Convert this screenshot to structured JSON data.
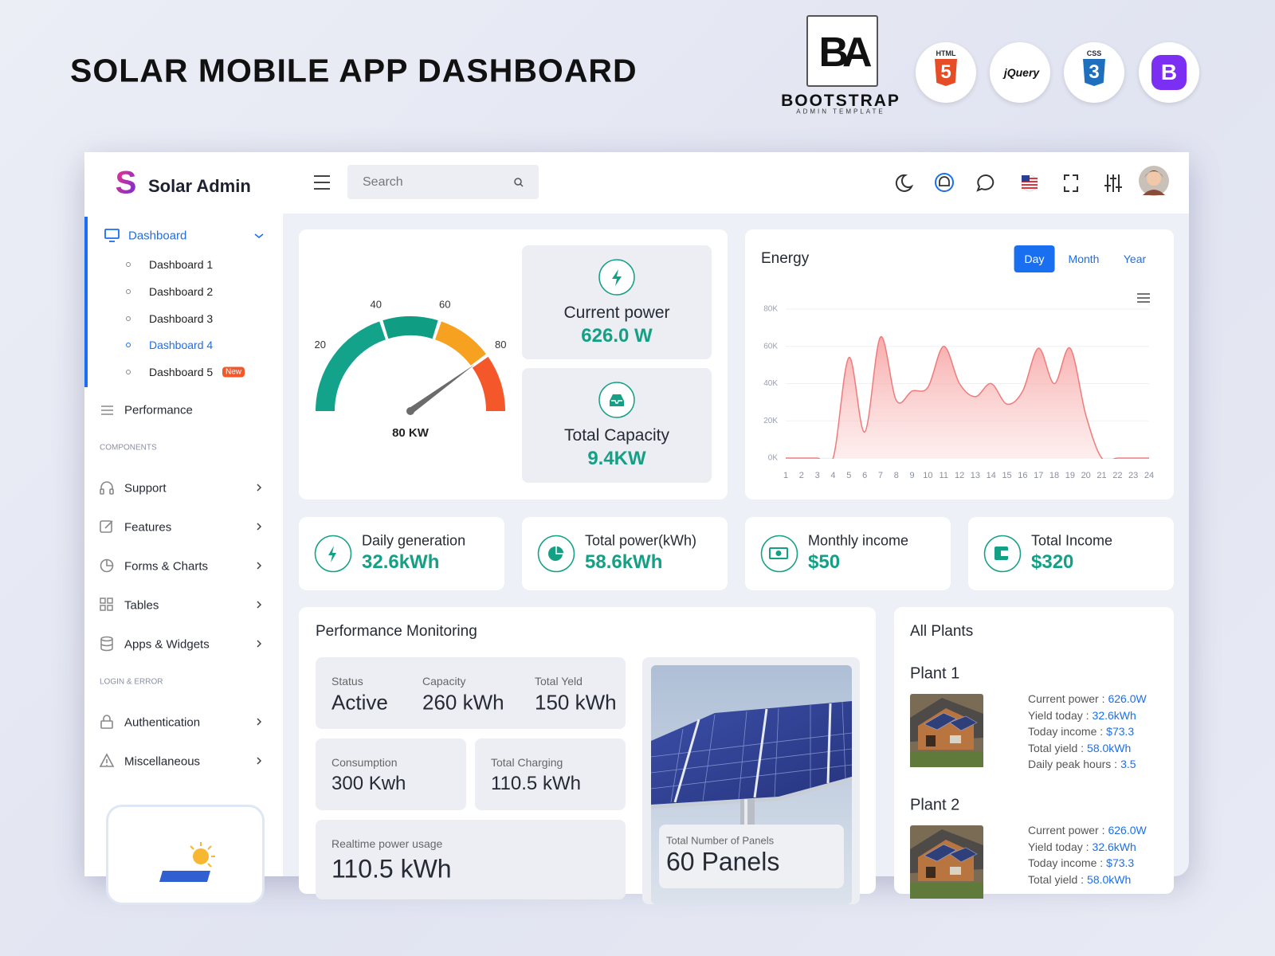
{
  "header": {
    "title": "SOLAR MOBILE APP DASHBOARD",
    "logo_mark": "BA",
    "brand": "BOOTSTRAP",
    "brand_sub": "ADMIN TEMPLATE",
    "badges": [
      {
        "label": "HTML",
        "mark": "5"
      },
      {
        "label": "jQuery"
      },
      {
        "label": "CSS",
        "mark": "3"
      },
      {
        "label": "B"
      }
    ]
  },
  "app": {
    "name": "Solar Admin",
    "search_placeholder": "Search"
  },
  "sidebar": {
    "dashboard": {
      "label": "Dashboard",
      "items": [
        "Dashboard 1",
        "Dashboard 2",
        "Dashboard 3",
        "Dashboard 4",
        "Dashboard 5"
      ],
      "new_badge": "New"
    },
    "performance": "Performance",
    "sections": [
      {
        "title": "COMPONENTS",
        "items": [
          "Support",
          "Features",
          "Forms & Charts",
          "Tables",
          "Apps & Widgets"
        ]
      },
      {
        "title": "LOGIN & ERROR",
        "items": [
          "Authentication",
          "Miscellaneous"
        ]
      }
    ]
  },
  "gauge": {
    "lim": [
      0,
      100
    ],
    "ticks": [
      20,
      40,
      60,
      80
    ],
    "value": 80,
    "label": "80 KW"
  },
  "stats": [
    {
      "label": "Current power",
      "value": "626.0 W"
    },
    {
      "label": "Total Capacity",
      "value": "9.4KW"
    }
  ],
  "energy_chart": {
    "type": "area",
    "title": "Energy",
    "tabs": [
      "Day",
      "Month",
      "Year"
    ],
    "x": [
      1,
      2,
      3,
      4,
      5,
      6,
      7,
      8,
      9,
      10,
      11,
      12,
      13,
      14,
      15,
      16,
      17,
      18,
      19,
      20,
      21,
      22,
      23,
      24
    ],
    "xlim": [
      1,
      24
    ],
    "values": [
      0,
      0,
      0,
      0,
      54000,
      14000,
      65000,
      31000,
      36000,
      38000,
      60000,
      40000,
      33000,
      40000,
      29000,
      36000,
      59000,
      40000,
      59000,
      23000,
      0,
      0,
      0,
      0
    ],
    "ylim": [
      0,
      80000
    ],
    "yticks": [
      {
        "value": 0,
        "label": "0K"
      },
      {
        "value": 20000,
        "label": "20K"
      },
      {
        "value": 40000,
        "label": "40K"
      },
      {
        "value": 60000,
        "label": "60K"
      },
      {
        "value": 80000,
        "label": "80K"
      }
    ],
    "color": "#f07b7b",
    "grid": true
  },
  "summary": [
    {
      "label": "Daily generation",
      "value": "32.6kWh"
    },
    {
      "label": "Total power(kWh)",
      "value": "58.6kWh"
    },
    {
      "label": "Monthly income",
      "value": "$50"
    },
    {
      "label": "Total Income",
      "value": "$320"
    }
  ],
  "performance": {
    "title": "Performance Monitoring",
    "metrics": [
      {
        "label": "Status",
        "value": "Active"
      },
      {
        "label": "Capacity",
        "value": "260 kWh"
      },
      {
        "label": "Total Yeld",
        "value": "150 kWh"
      },
      {
        "label": "Consumption",
        "value": "300 Kwh"
      },
      {
        "label": "Total Charging",
        "value": "110.5 kWh"
      },
      {
        "label": "Realtime power usage",
        "value": "110.5 kWh"
      }
    ],
    "panels": {
      "label": "Total Number of Panels",
      "value": "60 Panels"
    }
  },
  "plants": {
    "title": "All Plants",
    "items": [
      {
        "name": "Plant 1",
        "rows": [
          {
            "key": "Current power :",
            "value": "626.0W"
          },
          {
            "key": "Yield today :",
            "value": "32.6kWh"
          },
          {
            "key": "Today income :",
            "value": "$73.3"
          },
          {
            "key": "Total yield :",
            "value": "58.0kWh"
          },
          {
            "key": "Daily peak hours :",
            "value": "3.5"
          }
        ]
      },
      {
        "name": "Plant 2",
        "rows": [
          {
            "key": "Current power :",
            "value": "626.0W"
          },
          {
            "key": "Yield today :",
            "value": "32.6kWh"
          },
          {
            "key": "Today income :",
            "value": "$73.3"
          },
          {
            "key": "Total yield :",
            "value": "58.0kWh"
          }
        ]
      }
    ]
  }
}
